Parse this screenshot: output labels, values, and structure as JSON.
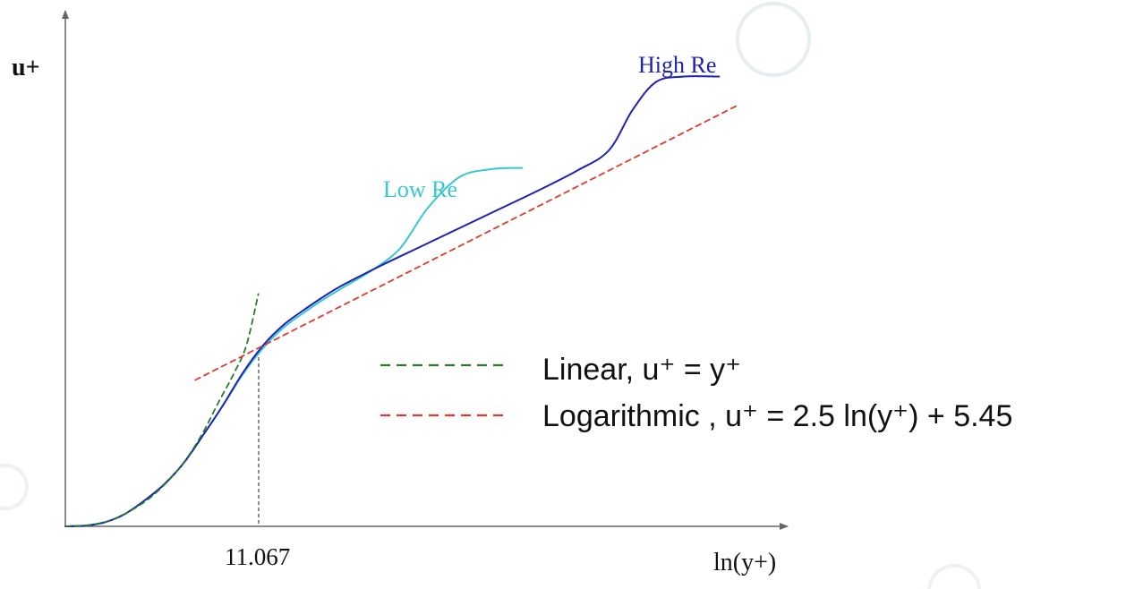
{
  "chart_data": {
    "type": "line",
    "xlabel": "ln(y+)",
    "ylabel": "u+",
    "x_marker": {
      "label": "11.067"
    },
    "series": [
      {
        "name": "Low Re",
        "color": "#38c8d0",
        "style": "solid",
        "points": [
          [
            0.0,
            0.0
          ],
          [
            0.05,
            0.05
          ],
          [
            0.1,
            0.3
          ],
          [
            0.15,
            0.9
          ],
          [
            0.2,
            1.9
          ],
          [
            0.25,
            3.1
          ],
          [
            0.3,
            4.7
          ],
          [
            0.35,
            6.8
          ],
          [
            0.4,
            9.0
          ],
          [
            0.45,
            11.3
          ],
          [
            0.5,
            13.2
          ],
          [
            0.55,
            14.7
          ],
          [
            0.6,
            15.8
          ],
          [
            0.65,
            16.8
          ],
          [
            0.7,
            17.7
          ],
          [
            0.78,
            19.1
          ],
          [
            0.85,
            20.7
          ],
          [
            0.92,
            23.7
          ],
          [
            1.0,
            26.0
          ],
          [
            1.08,
            26.6
          ],
          [
            1.16,
            26.7
          ]
        ]
      },
      {
        "name": "High Re",
        "color": "#1e22b4",
        "style": "solid",
        "points": [
          [
            0.0,
            0.0
          ],
          [
            0.05,
            0.05
          ],
          [
            0.1,
            0.3
          ],
          [
            0.15,
            0.9
          ],
          [
            0.2,
            1.9
          ],
          [
            0.25,
            3.1
          ],
          [
            0.3,
            4.7
          ],
          [
            0.35,
            6.8
          ],
          [
            0.4,
            9.0
          ],
          [
            0.45,
            11.4
          ],
          [
            0.5,
            13.4
          ],
          [
            0.55,
            14.9
          ],
          [
            0.6,
            16.0
          ],
          [
            0.65,
            17.0
          ],
          [
            0.7,
            17.9
          ],
          [
            0.8,
            19.4
          ],
          [
            0.9,
            20.8
          ],
          [
            1.0,
            22.2
          ],
          [
            1.1,
            23.6
          ],
          [
            1.2,
            25.0
          ],
          [
            1.3,
            26.5
          ],
          [
            1.38,
            28.0
          ],
          [
            1.44,
            31.0
          ],
          [
            1.5,
            33.1
          ],
          [
            1.57,
            33.5
          ],
          [
            1.66,
            33.5
          ]
        ]
      },
      {
        "name": "Linear, u⁺ = y⁺",
        "color": "#2a7a2a",
        "style": "dashed",
        "points": [
          [
            0.0,
            0.0
          ],
          [
            0.1,
            0.3
          ],
          [
            0.2,
            1.8
          ],
          [
            0.28,
            4.0
          ],
          [
            0.34,
            6.5
          ],
          [
            0.39,
            9.3
          ],
          [
            0.43,
            11.5
          ],
          [
            0.46,
            13.5
          ],
          [
            0.49,
            17.3
          ]
        ]
      },
      {
        "name": "Logarithmic , u⁺ = 2.5 ln(y⁺) + 5.45",
        "color": "#dd3a30",
        "style": "dashed",
        "points": [
          [
            0.33,
            10.9
          ],
          [
            1.71,
            31.4
          ]
        ]
      }
    ]
  }
}
